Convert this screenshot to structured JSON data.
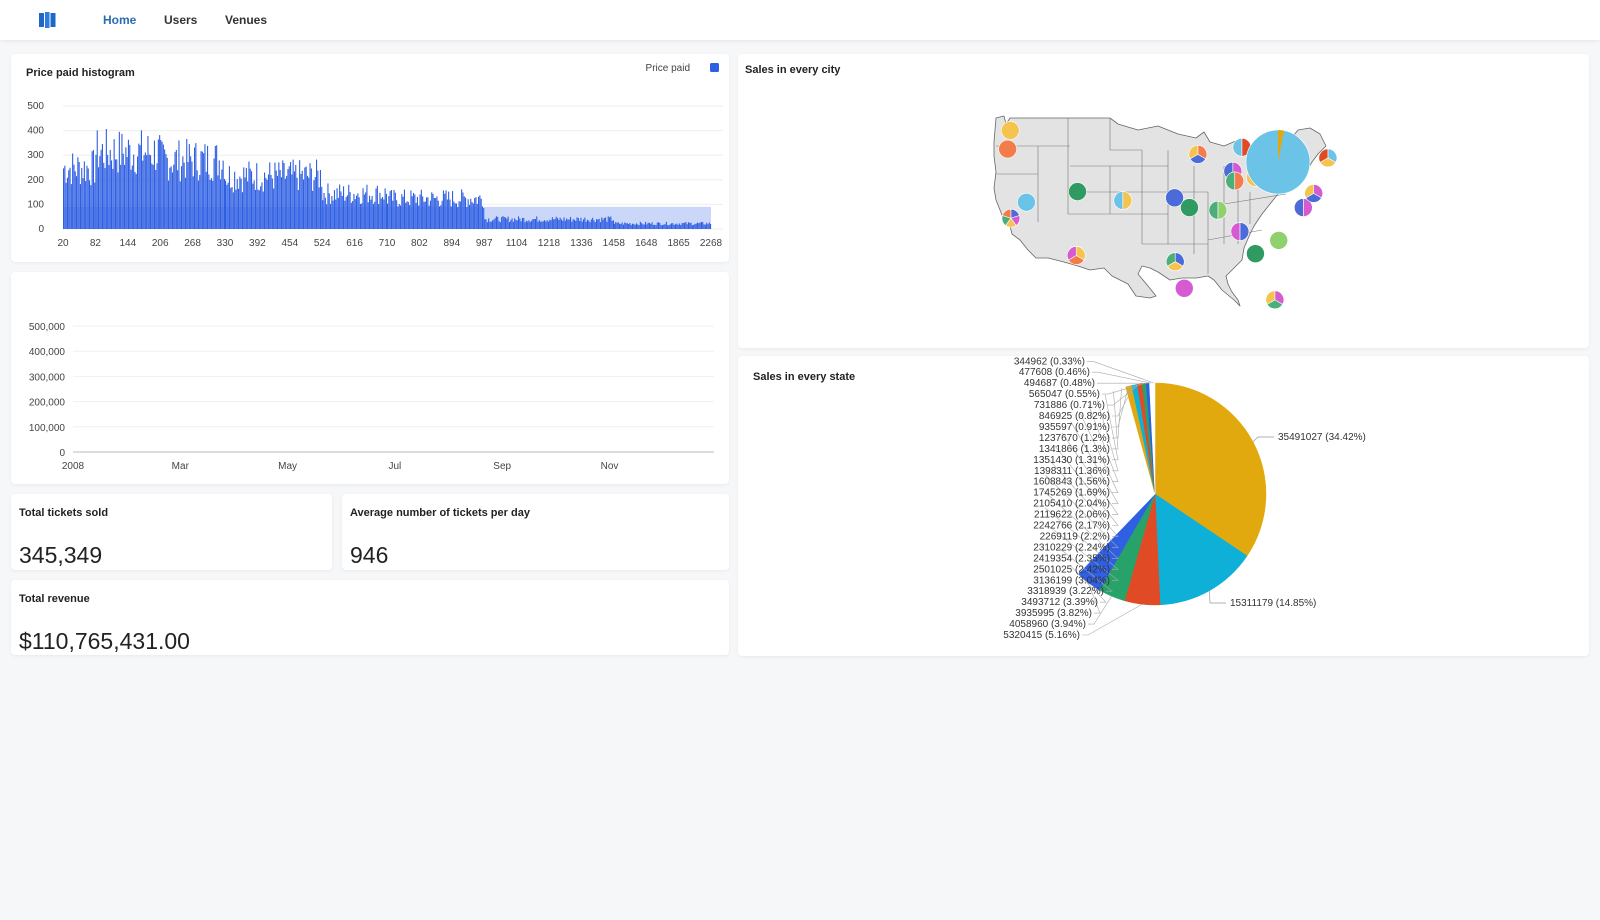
{
  "colors": {
    "accent": "#2b6cb0",
    "bar": "#2f5fe3",
    "background": "#f6f7f9"
  },
  "topbar": {
    "logo_icon": "columns-logo-icon",
    "nav": [
      {
        "label": "Home",
        "active": true
      },
      {
        "label": "Users",
        "active": false
      },
      {
        "label": "Venues",
        "active": false
      }
    ]
  },
  "histogram": {
    "title": "Price paid histogram",
    "legend": "Price paid"
  },
  "timeseries": {
    "title": ""
  },
  "kpis": {
    "tickets": {
      "title": "Total tickets sold",
      "value": "345,349"
    },
    "avg": {
      "title": "Average number of tickets per day",
      "value": "946"
    },
    "revenue": {
      "title": "Total revenue",
      "value": "$110,765,431.00"
    }
  },
  "map": {
    "title": "Sales in every city"
  },
  "pie": {
    "title": "Sales in every state"
  },
  "chart_data": [
    {
      "type": "bar",
      "title": "Price paid histogram",
      "legend": [
        "Price paid"
      ],
      "ylim": [
        0,
        500
      ],
      "yticks": [
        0,
        100,
        200,
        300,
        400,
        500
      ],
      "xticks": [
        "20",
        "82",
        "144",
        "206",
        "268",
        "330",
        "392",
        "454",
        "524",
        "616",
        "710",
        "802",
        "894",
        "987",
        "1104",
        "1218",
        "1336",
        "1458",
        "1648",
        "1865",
        "2268"
      ],
      "series": [
        {
          "name": "Price paid",
          "segments": [
            {
              "from": "20",
              "to": "82",
              "approx_count": 310
            },
            {
              "from": "82",
              "to": "206",
              "approx_count": 390
            },
            {
              "from": "206",
              "to": "330",
              "approx_count": 350
            },
            {
              "from": "330",
              "to": "524",
              "approx_count": 270
            },
            {
              "from": "524",
              "to": "710",
              "approx_count": 180
            },
            {
              "from": "710",
              "to": "987",
              "approx_count": 155
            },
            {
              "from": "987",
              "to": "1458",
              "approx_count": 50
            },
            {
              "from": "1458",
              "to": "2268",
              "approx_count": 28
            }
          ]
        }
      ]
    },
    {
      "type": "line",
      "title": "",
      "ylim": [
        0,
        500000
      ],
      "yticks": [
        "0",
        "100,000",
        "200,000",
        "300,000",
        "400,000",
        "500,000"
      ],
      "xticks": [
        "2008",
        "Mar",
        "May",
        "Jul",
        "Sep",
        "Nov"
      ],
      "series": []
    },
    {
      "type": "pie",
      "title": "Sales in every state",
      "slices": [
        {
          "label": "35491027 (34.42%)",
          "value": 35491027,
          "color": "#e2a90e"
        },
        {
          "label": "15311179 (14.85%)",
          "value": 15311179,
          "color": "#0fb0d8"
        },
        {
          "label": "5320415 (5.16%)",
          "value": 5320415,
          "color": "#e04a25"
        },
        {
          "label": "4058960 (3.94%)",
          "value": 4058960,
          "color": "#27a36a"
        },
        {
          "label": "3935995 (3.82%)",
          "value": 3935995,
          "color": "#2f5fe3"
        },
        {
          "label": "3493712 (3.39%)",
          "value": 3493712,
          "color": "#ffffff"
        },
        {
          "label": "3318939 (3.22%)",
          "value": 3318939,
          "color": "#ffffff"
        },
        {
          "label": "3136199 (3.04%)",
          "value": 3136199,
          "color": "#ffffff"
        },
        {
          "label": "2501025 (2.42%)",
          "value": 2501025,
          "color": "#ffffff"
        },
        {
          "label": "2419354 (2.35%)",
          "value": 2419354,
          "color": "#ffffff"
        },
        {
          "label": "2310229 (2.24%)",
          "value": 2310229,
          "color": "#ffffff"
        },
        {
          "label": "2269119 (2.2%)",
          "value": 2269119,
          "color": "#ffffff"
        },
        {
          "label": "2242766 (2.17%)",
          "value": 2242766,
          "color": "#ffffff"
        },
        {
          "label": "2119622 (2.06%)",
          "value": 2119622,
          "color": "#ffffff"
        },
        {
          "label": "2105410 (2.04%)",
          "value": 2105410,
          "color": "#ffffff"
        },
        {
          "label": "1745269 (1.69%)",
          "value": 1745269,
          "color": "#ffffff"
        },
        {
          "label": "1608843 (1.56%)",
          "value": 1608843,
          "color": "#ffffff"
        },
        {
          "label": "1398311 (1.36%)",
          "value": 1398311,
          "color": "#ffffff"
        },
        {
          "label": "1351430 (1.31%)",
          "value": 1351430,
          "color": "#ffffff"
        },
        {
          "label": "1341866 (1.3%)",
          "value": 1341866,
          "color": "#ffffff"
        },
        {
          "label": "1237670 (1.2%)",
          "value": 1237670,
          "color": "#ffffff"
        },
        {
          "label": "935597 (0.91%)",
          "value": 935597,
          "color": "#e2a90e"
        },
        {
          "label": "846925 (0.82%)",
          "value": 846925,
          "color": "#0fb0d8"
        },
        {
          "label": "731886 (0.71%)",
          "value": 731886,
          "color": "#e04a25"
        },
        {
          "label": "565047 (0.55%)",
          "value": 565047,
          "color": "#27a36a"
        },
        {
          "label": "494687 (0.48%)",
          "value": 494687,
          "color": "#2f5fe3"
        },
        {
          "label": "477608 (0.46%)",
          "value": 477608,
          "color": "#ffffff"
        },
        {
          "label": "344962 (0.33%)",
          "value": 344962,
          "color": "#ffffff"
        }
      ]
    }
  ],
  "city_markers": [
    {
      "lon": -122.3,
      "lat": 47.6,
      "colors": [
        "#f5c44e"
      ]
    },
    {
      "lon": -122.7,
      "lat": 45.5,
      "colors": [
        "#f47b4a"
      ]
    },
    {
      "lon": -122.2,
      "lat": 37.7,
      "colors": [
        "#4a6bd8",
        "#d45bd0",
        "#f5c44e",
        "#4caf7a",
        "#f47b4a"
      ]
    },
    {
      "lon": -119.8,
      "lat": 39.5,
      "colors": [
        "#6cc3e8"
      ]
    },
    {
      "lon": -111.9,
      "lat": 40.7,
      "colors": [
        "#2f9b62"
      ]
    },
    {
      "lon": -112.1,
      "lat": 33.5,
      "colors": [
        "#f5c44e",
        "#f47b4a",
        "#d45bd0"
      ]
    },
    {
      "lon": -104.9,
      "lat": 39.7,
      "colors": [
        "#f5c44e",
        "#6cc3e8"
      ]
    },
    {
      "lon": -96.9,
      "lat": 40.0,
      "colors": [
        "#4a6bd8"
      ]
    },
    {
      "lon": -94.6,
      "lat": 38.9,
      "colors": [
        "#2f9b62"
      ]
    },
    {
      "lon": -96.8,
      "lat": 32.8,
      "colors": [
        "#4a6bd8",
        "#f5c44e",
        "#4caf7a"
      ]
    },
    {
      "lon": -95.4,
      "lat": 29.8,
      "colors": [
        "#d45bd0"
      ]
    },
    {
      "lon": -93.3,
      "lat": 44.9,
      "colors": [
        "#f47b4a",
        "#4a6bd8",
        "#f5c44e"
      ]
    },
    {
      "lon": -87.9,
      "lat": 43.0,
      "colors": [
        "#d45bd0",
        "#4a6bd8"
      ]
    },
    {
      "lon": -90.2,
      "lat": 38.6,
      "colors": [
        "#8fd16c",
        "#4caf7a"
      ]
    },
    {
      "lon": -87.6,
      "lat": 41.9,
      "colors": [
        "#f47b4a",
        "#4caf7a"
      ]
    },
    {
      "lon": -84.4,
      "lat": 42.3,
      "colors": [
        "#f5c44e"
      ]
    },
    {
      "lon": -86.5,
      "lat": 45.7,
      "colors": [
        "#e04a25",
        "#6cc3e8"
      ]
    },
    {
      "lon": -81.7,
      "lat": 41.5,
      "colors": [
        "#4a6bd8",
        "#d45bd0"
      ]
    },
    {
      "lon": -86.8,
      "lat": 36.2,
      "colors": [
        "#4a6bd8",
        "#d45bd0"
      ]
    },
    {
      "lon": -84.4,
      "lat": 33.7,
      "colors": [
        "#2f9b62"
      ]
    },
    {
      "lon": -80.8,
      "lat": 35.2,
      "colors": [
        "#8fd16c"
      ]
    },
    {
      "lon": -77.0,
      "lat": 38.9,
      "colors": [
        "#d45bd0",
        "#4a6bd8"
      ]
    },
    {
      "lon": -81.4,
      "lat": 28.5,
      "colors": [
        "#d45bd0",
        "#4caf7a",
        "#f5c44e"
      ]
    },
    {
      "lon": -77.6,
      "lat": 43.1,
      "colors": [
        "#6cc3e8",
        "#d45bd0"
      ]
    },
    {
      "lon": -75.4,
      "lat": 40.5,
      "colors": [
        "#d45bd0",
        "#4a6bd8",
        "#f5c44e"
      ]
    },
    {
      "lon": -74.0,
      "lat": 40.7,
      "colors": [
        "#6cc3e8"
      ]
    },
    {
      "lon": -73.2,
      "lat": 44.5,
      "colors": [
        "#6cc3e8",
        "#f5c44e",
        "#e04a25"
      ]
    }
  ]
}
